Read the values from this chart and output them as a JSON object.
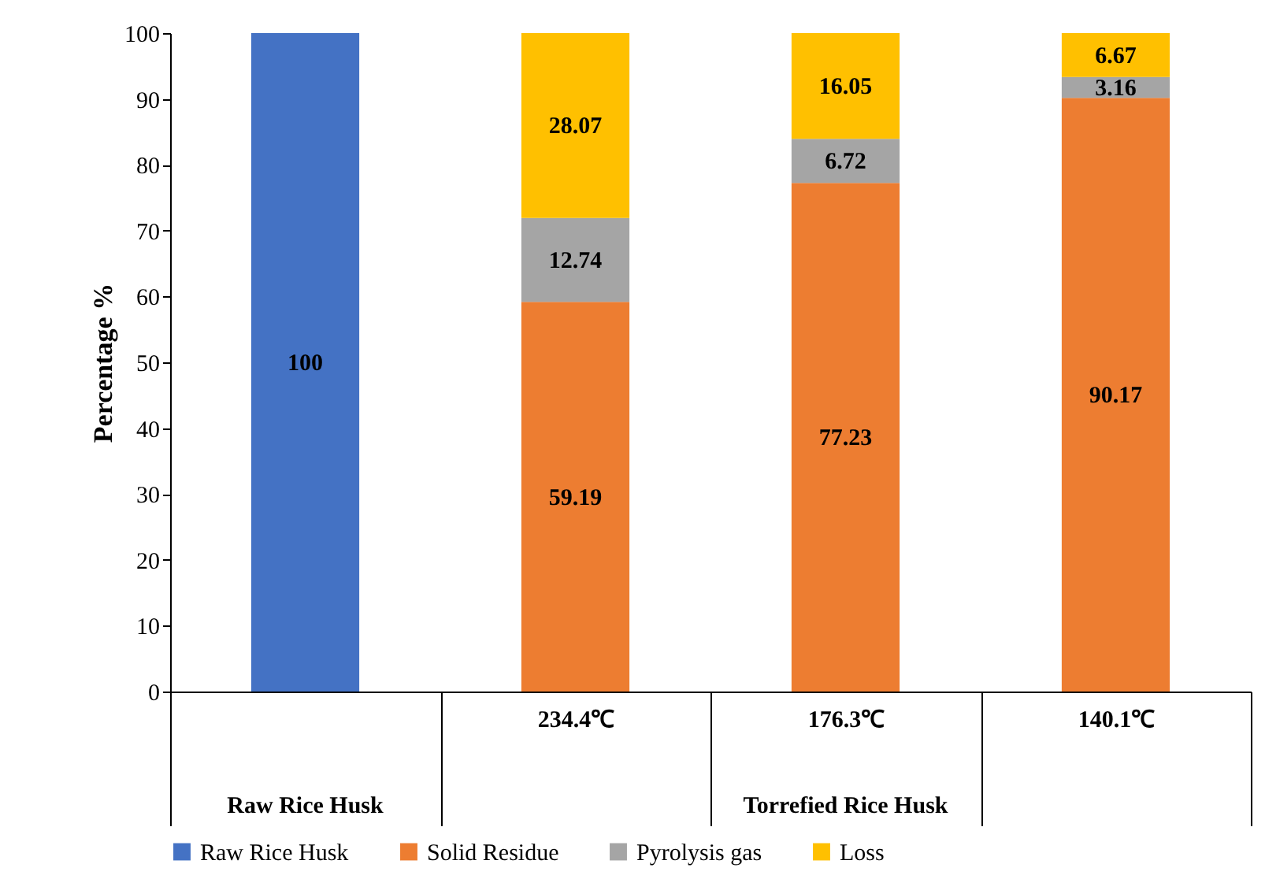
{
  "chart_data": {
    "type": "bar",
    "stacked": true,
    "categories": [
      null,
      "234.4℃",
      "176.3℃",
      "140.1℃"
    ],
    "ylabel": "Percentage %",
    "ylim": [
      0,
      100
    ],
    "yticks": [
      0,
      10,
      20,
      30,
      40,
      50,
      60,
      70,
      80,
      90,
      100
    ],
    "series": [
      {
        "name": "Raw Rice Husk",
        "color": "#4472c4",
        "values": [
          100,
          null,
          null,
          null
        ]
      },
      {
        "name": "Solid Residue",
        "color": "#ed7d31",
        "values": [
          null,
          59.19,
          77.23,
          90.17
        ]
      },
      {
        "name": "Pyrolysis gas",
        "color": "#a5a5a5",
        "values": [
          null,
          12.74,
          6.72,
          3.16
        ]
      },
      {
        "name": "Loss",
        "color": "#ffc000",
        "values": [
          null,
          28.07,
          16.05,
          6.67
        ]
      }
    ],
    "annotations": [
      "Raw Rice Husk",
      "Torrefied Rice Husk"
    ],
    "data_labels": true,
    "legend": "bottom",
    "grid": false
  }
}
